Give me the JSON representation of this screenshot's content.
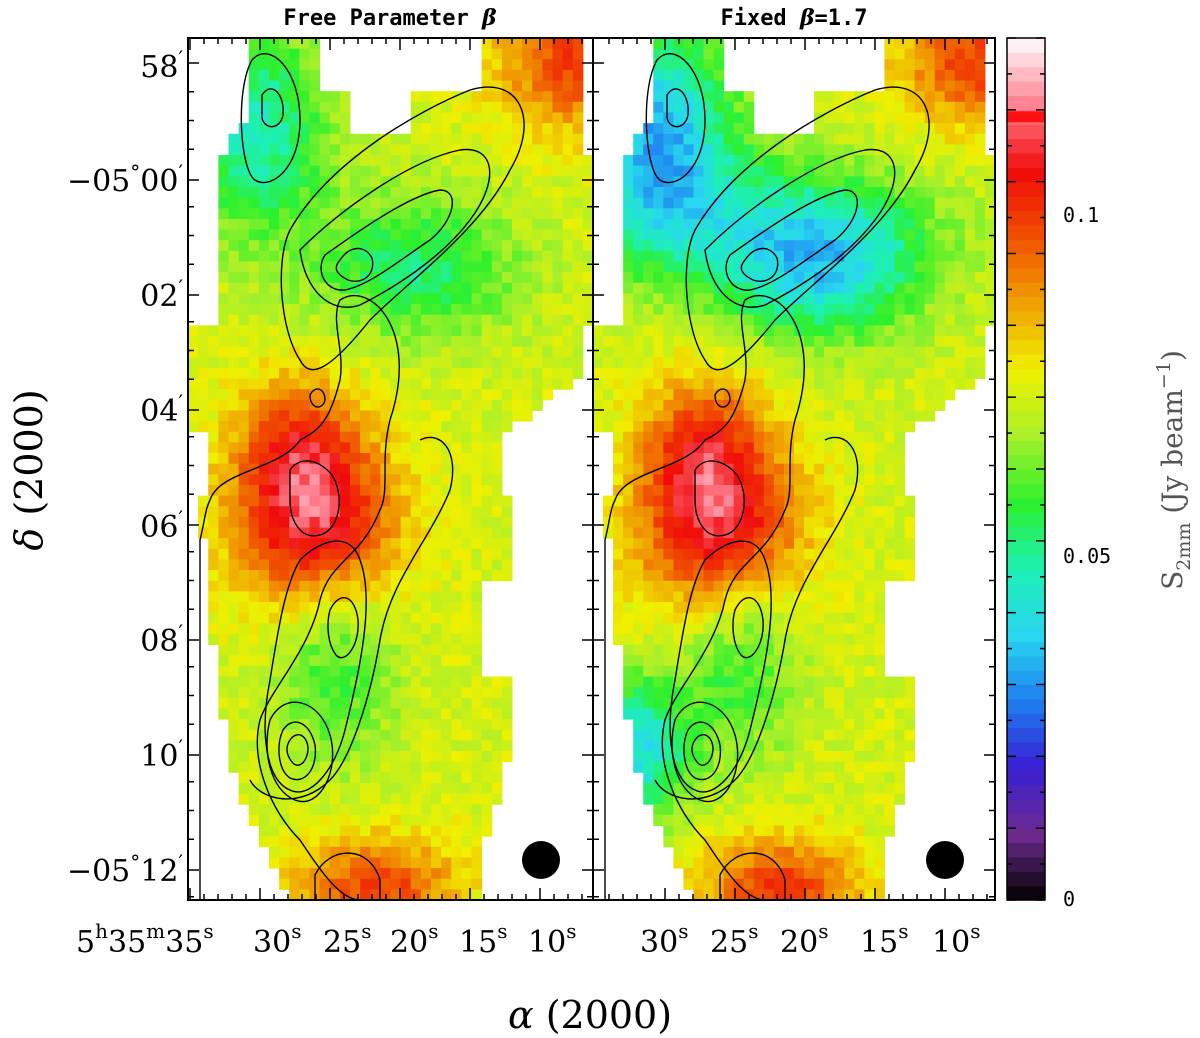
{
  "chart_data": [
    {
      "type": "heatmap",
      "title": "Free Parameter β",
      "xlabel": "α (2000)",
      "ylabel": "δ (2000)",
      "x_ticks": [
        "5h35m35s",
        "30s",
        "25s",
        "20s",
        "15s",
        "10s"
      ],
      "y_ticks": [
        "58′",
        "−05°00′",
        "02′",
        "04′",
        "06′",
        "08′",
        "10′",
        "−05°12′"
      ],
      "value_range": [
        0,
        0.12
      ],
      "beam_marker": true
    },
    {
      "type": "heatmap",
      "title": "Fixed β=1.7",
      "xlabel": "α (2000)",
      "ylabel": "δ (2000)",
      "x_ticks": [
        "30s",
        "25s",
        "20s",
        "15s",
        "10s"
      ],
      "value_range": [
        0,
        0.12
      ],
      "beam_marker": true
    }
  ],
  "colorbar": {
    "ticks": [
      "0.1",
      "0.05",
      "0"
    ],
    "tick_values": [
      0.1,
      0.05,
      0
    ],
    "label": "S2mm (Jy beam−1)",
    "colormap": [
      "#000000",
      "#6d2a8f",
      "#3a1ed4",
      "#1e7ef0",
      "#28d6f0",
      "#1ef0b4",
      "#2cf02c",
      "#a8f02a",
      "#f0f000",
      "#f0a000",
      "#f05000",
      "#f00a0a",
      "#ff8090",
      "#ffffff"
    ]
  },
  "left_panel": {
    "title_main": "Free Parameter ",
    "title_sym": "β",
    "x_ticks": [
      {
        "pre": "5",
        "sup1": "h",
        "mid": "35",
        "sup2": "m",
        "num": "35",
        "sup3": "s"
      },
      {
        "num": "30",
        "sup3": "s"
      },
      {
        "num": "25",
        "sup3": "s"
      },
      {
        "num": "20",
        "sup3": "s"
      },
      {
        "num": "15",
        "sup3": "s"
      },
      {
        "num": "10",
        "sup3": "s"
      }
    ]
  },
  "right_panel": {
    "title_main": "Fixed ",
    "title_sym": "β",
    "title_val": "=1.7",
    "x_ticks": [
      "30",
      "25",
      "20",
      "15",
      "10"
    ]
  },
  "y_labels": {
    "l58": "58",
    "l00a": "−05",
    "l00b": "00",
    "l02": "02",
    "l04": "04",
    "l06": "06",
    "l08": "08",
    "l10": "10",
    "l12a": "−05",
    "l12b": "12"
  },
  "axis_titles": {
    "x_sym": "α",
    "x_rest": " (2000)",
    "y_sym": "δ",
    "y_rest": " (2000)",
    "cb_s": "S",
    "cb_sub": "2mm",
    "cb_unit": " (Jy beam",
    "cb_sup": "−1",
    "cb_close": ")"
  },
  "sup_s": "s",
  "prime": "′",
  "deg": "°"
}
